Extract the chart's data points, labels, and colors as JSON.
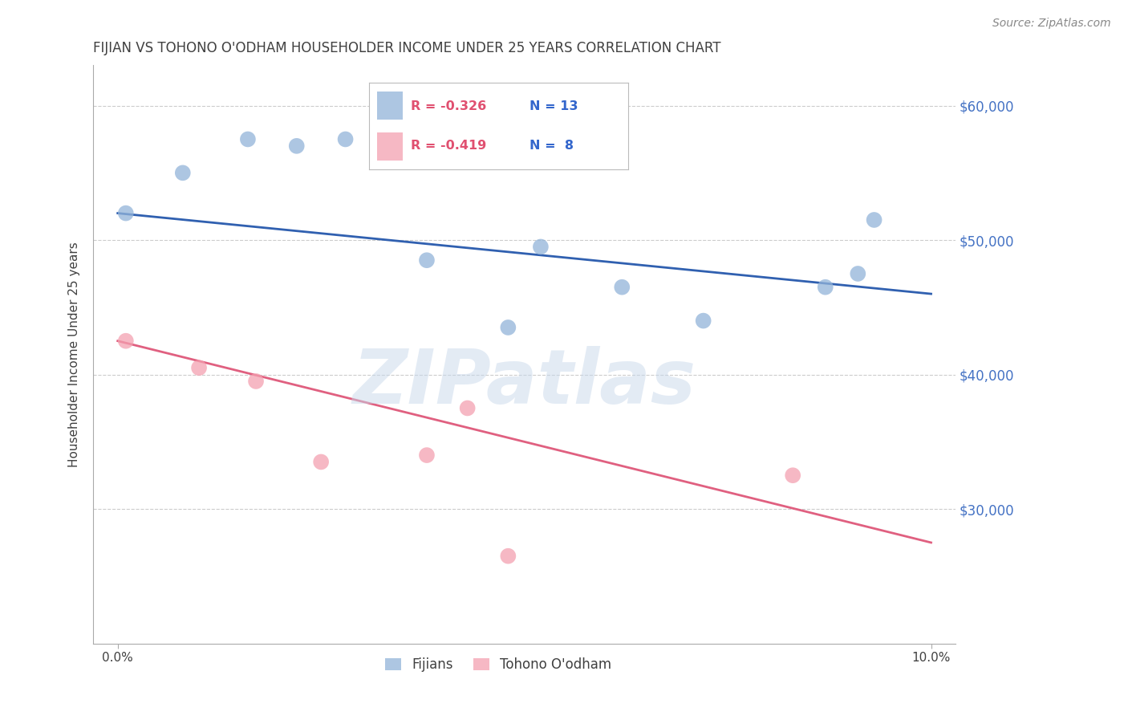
{
  "title": "FIJIAN VS TOHONO O'ODHAM HOUSEHOLDER INCOME UNDER 25 YEARS CORRELATION CHART",
  "source": "Source: ZipAtlas.com",
  "ylabel": "Householder Income Under 25 years",
  "watermark": "ZIPatlas",
  "legend_blue_r": "R = -0.326",
  "legend_blue_n": "N = 13",
  "legend_pink_r": "R = -0.419",
  "legend_pink_n": "N =  8",
  "legend_blue_label": "Fijians",
  "legend_pink_label": "Tohono O'odham",
  "fijian_x": [
    0.001,
    0.008,
    0.016,
    0.022,
    0.028,
    0.038,
    0.048,
    0.052,
    0.062,
    0.072,
    0.087,
    0.091,
    0.093
  ],
  "fijian_y": [
    52000,
    55000,
    57500,
    57000,
    57500,
    48500,
    43500,
    49500,
    46500,
    44000,
    46500,
    47500,
    51500
  ],
  "tohono_x": [
    0.001,
    0.01,
    0.017,
    0.025,
    0.043,
    0.048,
    0.083,
    0.038
  ],
  "tohono_y": [
    42500,
    40500,
    39500,
    33500,
    37500,
    26500,
    32500,
    34000
  ],
  "blue_line_x": [
    0.0,
    0.1
  ],
  "blue_line_y": [
    52000,
    46000
  ],
  "pink_line_x": [
    0.0,
    0.1
  ],
  "pink_line_y": [
    42500,
    27500
  ],
  "ylim": [
    20000,
    63000
  ],
  "xlim": [
    -0.003,
    0.103
  ],
  "ytick_positions": [
    30000,
    40000,
    50000,
    60000
  ],
  "ytick_labels": [
    "$30,000",
    "$40,000",
    "$50,000",
    "$60,000"
  ],
  "background_color": "#ffffff",
  "blue_color": "#92b4d9",
  "pink_color": "#f4a0b0",
  "blue_line_color": "#3060b0",
  "pink_line_color": "#e06080",
  "grid_color": "#cccccc",
  "title_color": "#404040",
  "axis_label_color": "#404040",
  "right_tick_color": "#4472c4",
  "dot_size": 200
}
